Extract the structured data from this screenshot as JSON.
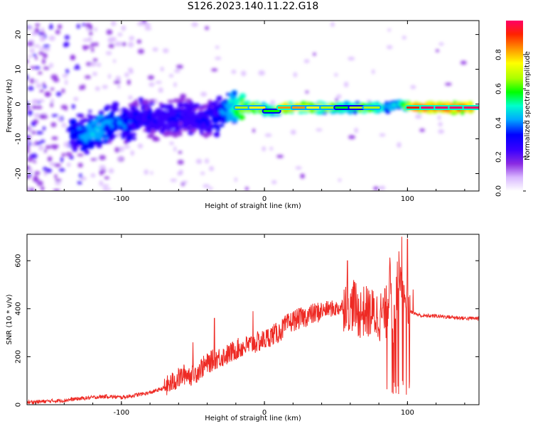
{
  "title": "S126.2023.140.11.22.G18",
  "colors": {
    "snr_line": "#ee2a24",
    "axis": "#000000",
    "background": "#ffffff"
  },
  "chart_data": [
    {
      "type": "heatmap",
      "title": "S126.2023.140.11.22.G18",
      "xlabel": "Height of straight line (km)",
      "ylabel": "Frequency (Hz)",
      "xlim": [
        -166,
        150
      ],
      "ylim": [
        -25,
        24
      ],
      "xticks": [
        -100,
        0,
        100
      ],
      "yticks": [
        -20,
        -10,
        0,
        10,
        20
      ],
      "colorbar": {
        "label": "Normalized spectral amplitude",
        "range": [
          0,
          1
        ],
        "ticks": [
          0.0,
          0.2,
          0.4,
          0.6,
          0.8
        ],
        "colormap": [
          "#ffffff",
          "#d9b8ff",
          "#8a2be2",
          "#3a00ff",
          "#0000ff",
          "#00aaff",
          "#00ffcc",
          "#00ff00",
          "#aaff00",
          "#ffff00",
          "#ff9900",
          "#ff2200",
          "#ff0066"
        ]
      },
      "ridge": [
        {
          "x": -135,
          "y": -8,
          "amp": 0.35
        },
        {
          "x": -125,
          "y": -9,
          "amp": 0.42
        },
        {
          "x": -115,
          "y": -7,
          "amp": 0.45
        },
        {
          "x": -105,
          "y": -5,
          "amp": 0.4
        },
        {
          "x": -95,
          "y": -6,
          "amp": 0.35
        },
        {
          "x": -85,
          "y": -3,
          "amp": 0.3
        },
        {
          "x": -75,
          "y": -5,
          "amp": 0.3
        },
        {
          "x": -65,
          "y": -4,
          "amp": 0.3
        },
        {
          "x": -55,
          "y": -3,
          "amp": 0.28
        },
        {
          "x": -45,
          "y": -5,
          "amp": 0.3
        },
        {
          "x": -35,
          "y": -4,
          "amp": 0.32
        },
        {
          "x": -25,
          "y": -1,
          "amp": 0.45
        },
        {
          "x": -15,
          "y": -1,
          "amp": 0.7
        },
        {
          "x": -5,
          "y": -1,
          "amp": 0.75
        },
        {
          "x": 5,
          "y": -2,
          "amp": 0.6
        },
        {
          "x": 15,
          "y": -1,
          "amp": 0.85
        },
        {
          "x": 25,
          "y": -1,
          "amp": 0.8
        },
        {
          "x": 35,
          "y": -1,
          "amp": 0.75
        },
        {
          "x": 45,
          "y": -1,
          "amp": 0.7
        },
        {
          "x": 55,
          "y": -1,
          "amp": 0.6
        },
        {
          "x": 65,
          "y": -1,
          "amp": 0.65
        },
        {
          "x": 75,
          "y": -1,
          "amp": 0.7
        },
        {
          "x": 85,
          "y": -1,
          "amp": 0.45
        },
        {
          "x": 95,
          "y": 0,
          "amp": 0.5
        },
        {
          "x": 105,
          "y": -1,
          "amp": 0.95
        },
        {
          "x": 115,
          "y": -1,
          "amp": 0.97
        },
        {
          "x": 125,
          "y": -1,
          "amp": 0.97
        },
        {
          "x": 135,
          "y": -1,
          "amp": 0.97
        },
        {
          "x": 145,
          "y": -1,
          "amp": 0.97
        }
      ]
    },
    {
      "type": "line",
      "xlabel": "Height of straight line (km)",
      "ylabel": "SNR (10 * v/v)",
      "xlim": [
        -166,
        150
      ],
      "ylim": [
        0,
        710
      ],
      "xticks": [
        -100,
        0,
        100
      ],
      "yticks": [
        0,
        200,
        400,
        600
      ],
      "x": [
        -166,
        -150,
        -140,
        -130,
        -120,
        -110,
        -100,
        -90,
        -80,
        -70,
        -60,
        -55,
        -50,
        -45,
        -40,
        -35,
        -30,
        -25,
        -20,
        -15,
        -10,
        -5,
        0,
        5,
        10,
        15,
        20,
        25,
        30,
        35,
        40,
        45,
        50,
        55,
        58,
        60,
        62,
        65,
        70,
        75,
        80,
        85,
        88,
        90,
        92,
        95,
        98,
        100,
        105,
        110,
        120,
        130,
        140,
        150
      ],
      "y": [
        10,
        15,
        18,
        25,
        30,
        35,
        30,
        40,
        50,
        70,
        110,
        130,
        120,
        150,
        170,
        190,
        200,
        210,
        230,
        240,
        250,
        260,
        270,
        290,
        300,
        330,
        350,
        360,
        370,
        380,
        390,
        400,
        400,
        410,
        440,
        380,
        430,
        380,
        390,
        380,
        370,
        380,
        520,
        340,
        450,
        580,
        370,
        400,
        380,
        370,
        370,
        365,
        360,
        360
      ],
      "peaks": [
        [
          -8,
          390
        ],
        [
          -35,
          360
        ],
        [
          -50,
          260
        ],
        [
          58,
          600
        ],
        [
          63,
          510
        ],
        [
          90,
          660
        ],
        [
          92,
          700
        ],
        [
          96,
          700
        ],
        [
          100,
          690
        ],
        [
          104,
          480
        ]
      ]
    }
  ]
}
